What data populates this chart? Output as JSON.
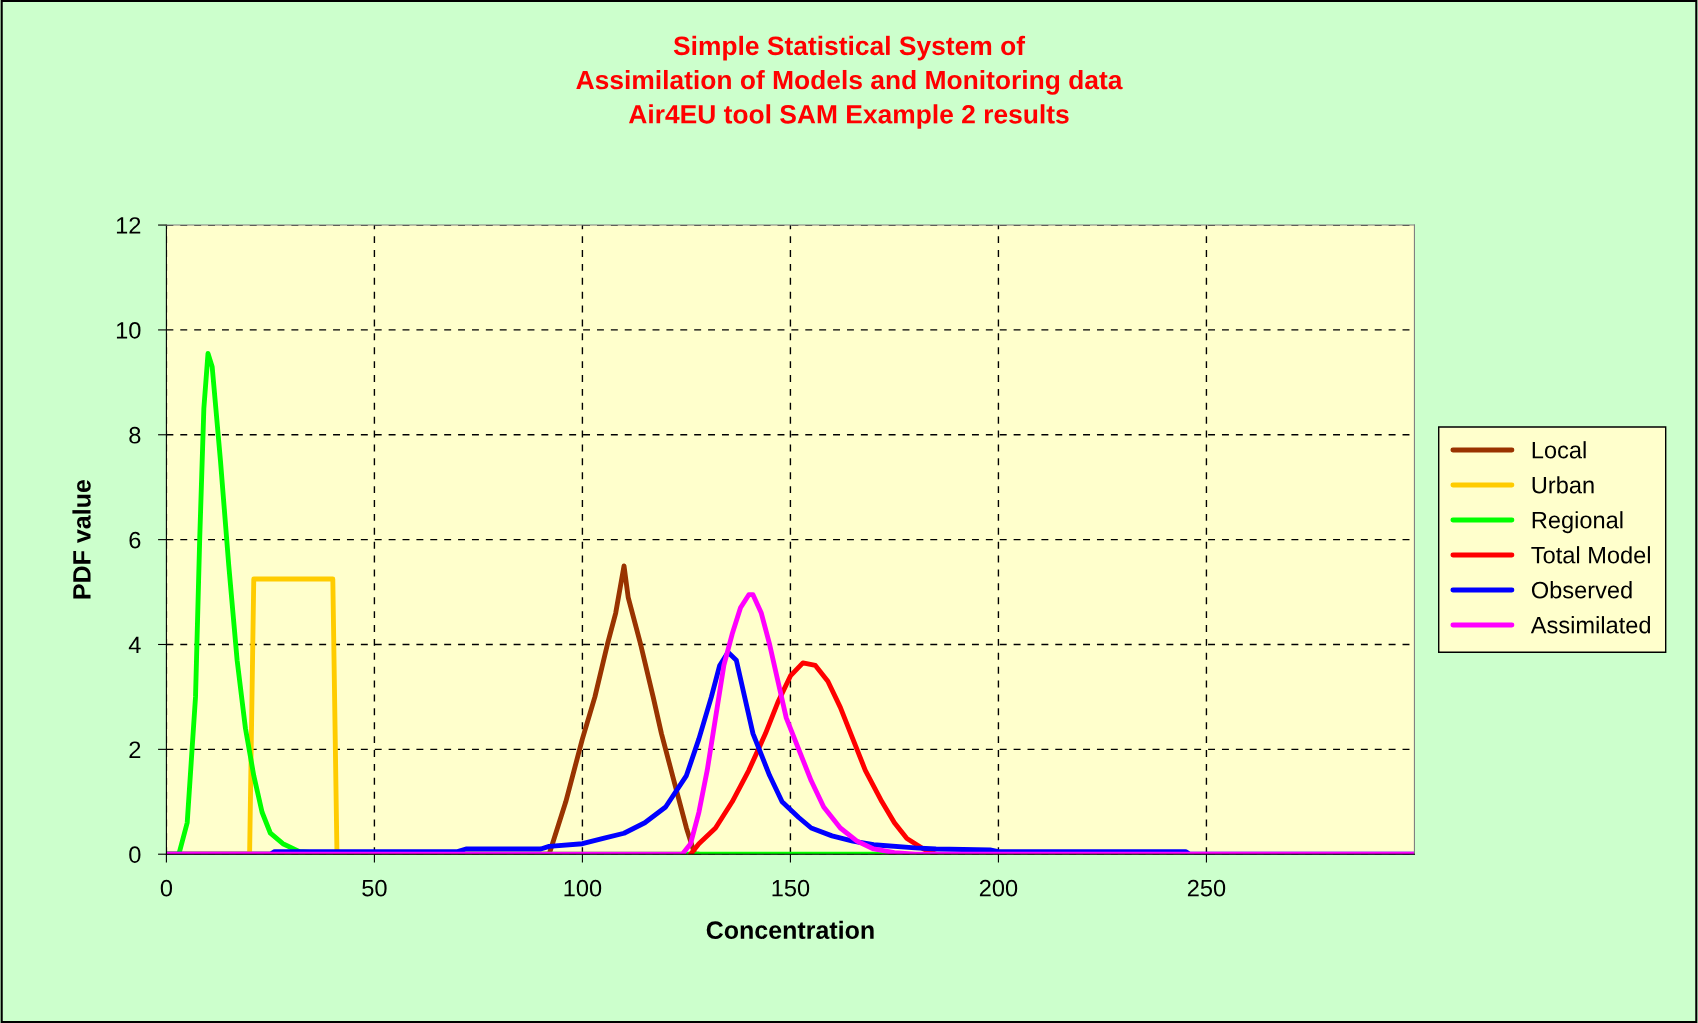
{
  "chart_data": {
    "type": "line",
    "title": "Simple Statistical System of\nAssimilation of Models and Monitoring data\nAir4EU tool SAM Example 2 results",
    "xlabel": "Concentration",
    "ylabel": "PDF value",
    "xlim": [
      0,
      300
    ],
    "xticks": [
      0,
      50,
      100,
      150,
      200,
      250
    ],
    "ylim": [
      0,
      12
    ],
    "yticks": [
      0,
      2,
      4,
      6,
      8,
      10,
      12
    ],
    "grid": true,
    "legend": "right",
    "line_style": "solid",
    "marker": "none",
    "series": [
      {
        "name": "Local",
        "color": "#993300",
        "x": [
          0,
          92,
          96,
          100,
          103,
          106,
          108,
          110,
          111,
          114,
          117,
          119,
          122,
          125,
          127,
          128
        ],
        "values": [
          0,
          0,
          1,
          2.2,
          3,
          4,
          4.6,
          5.5,
          4.9,
          4,
          3,
          2.3,
          1.4,
          0.5,
          0,
          0
        ]
      },
      {
        "name": "Urban",
        "color": "#ffcc00",
        "x": [
          0,
          20,
          21,
          40,
          41
        ],
        "values": [
          0,
          0,
          5.25,
          5.25,
          0
        ]
      },
      {
        "name": "Regional",
        "color": "#00ff00",
        "x": [
          0,
          3,
          5,
          7,
          8,
          9,
          10,
          11,
          13,
          15,
          17,
          19,
          21,
          23,
          25,
          28,
          32,
          40,
          175
        ],
        "values": [
          0,
          0,
          0.6,
          3,
          6,
          8.5,
          9.55,
          9.3,
          7.5,
          5.5,
          3.7,
          2.4,
          1.5,
          0.8,
          0.4,
          0.2,
          0.05,
          0,
          0
        ]
      },
      {
        "name": "Total Model",
        "color": "#ff0000",
        "x": [
          126,
          128,
          132,
          136,
          140,
          144,
          147,
          150,
          153,
          156,
          159,
          162,
          165,
          168,
          172,
          175,
          178,
          182,
          185
        ],
        "values": [
          0,
          0.2,
          0.5,
          1.0,
          1.6,
          2.3,
          2.9,
          3.4,
          3.65,
          3.6,
          3.3,
          2.8,
          2.2,
          1.6,
          1.0,
          0.6,
          0.3,
          0.1,
          0
        ]
      },
      {
        "name": "Observed",
        "color": "#0000ff",
        "x": [
          0,
          25,
          26,
          70,
          72,
          90,
          92,
          100,
          105,
          110,
          115,
          120,
          125,
          128,
          131,
          133,
          135,
          137,
          139,
          141,
          145,
          148,
          152,
          155,
          160,
          165,
          170,
          180,
          185,
          198,
          200,
          245,
          246,
          300
        ],
        "values": [
          0,
          0,
          0.05,
          0.05,
          0.1,
          0.1,
          0.15,
          0.2,
          0.3,
          0.4,
          0.6,
          0.9,
          1.5,
          2.2,
          3.0,
          3.6,
          3.85,
          3.7,
          3.0,
          2.3,
          1.5,
          1.0,
          0.7,
          0.5,
          0.35,
          0.25,
          0.18,
          0.12,
          0.1,
          0.08,
          0.05,
          0.05,
          0,
          0
        ]
      },
      {
        "name": "Assimilated",
        "color": "#ff00ff",
        "x": [
          0,
          124,
          126,
          128,
          130,
          132,
          134,
          136,
          138,
          140,
          141,
          143,
          145,
          147,
          149,
          152,
          155,
          158,
          162,
          166,
          170,
          175,
          180,
          300
        ],
        "values": [
          0,
          0,
          0.2,
          0.8,
          1.6,
          2.6,
          3.6,
          4.2,
          4.7,
          4.95,
          4.95,
          4.6,
          4.0,
          3.3,
          2.6,
          2.0,
          1.4,
          0.9,
          0.5,
          0.25,
          0.1,
          0.03,
          0,
          0
        ]
      }
    ]
  }
}
